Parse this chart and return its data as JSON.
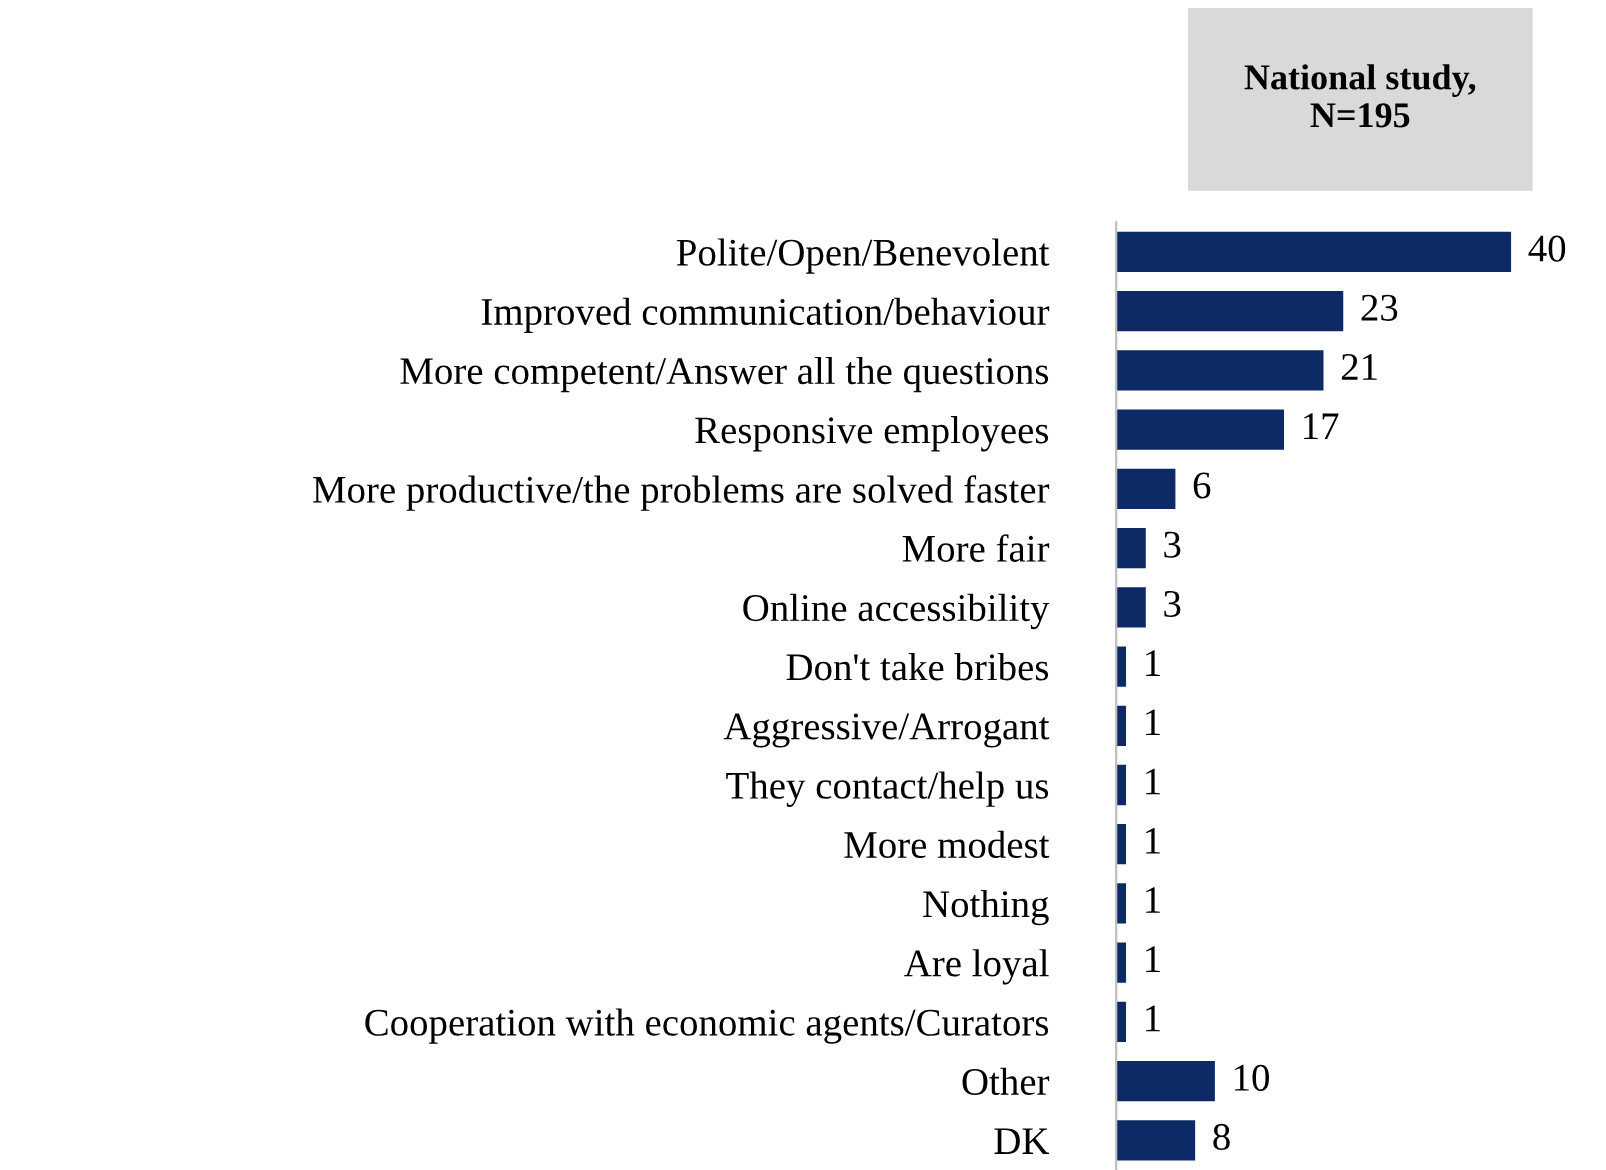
{
  "chart_data": {
    "type": "bar",
    "orientation": "horizontal",
    "title": "National study,\nN=195",
    "categories": [
      "Polite/Open/Benevolent",
      "Improved communication/behaviour",
      "More competent/Answer all the questions",
      "Responsive employees",
      "More productive/the problems are solved faster",
      "More fair",
      "Online accessibility",
      "Don't take bribes",
      "Aggressive/Arrogant",
      "They contact/help us",
      "More modest",
      "Nothing",
      "Are loyal",
      "Cooperation with economic agents/Curators",
      "Other",
      "DK"
    ],
    "values": [
      40,
      23,
      21,
      17,
      6,
      3,
      3,
      1,
      1,
      1,
      1,
      1,
      1,
      1,
      10,
      8
    ],
    "color": "#0d2a66",
    "data_labels": true,
    "grid": false,
    "legend": false
  }
}
